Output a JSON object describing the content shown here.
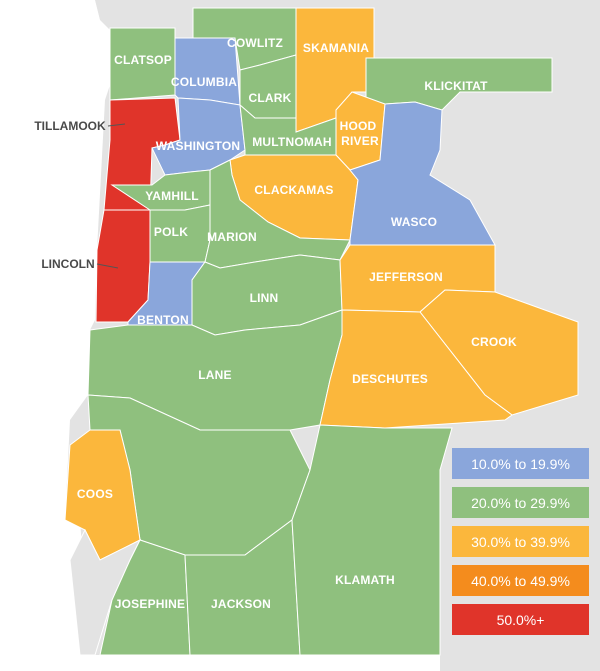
{
  "colors": {
    "band_10_19": "#8aa6db",
    "band_20_29": "#8fc07e",
    "band_30_39": "#fbb73c",
    "band_40_49": "#f48c1d",
    "band_50_plus": "#e0342a",
    "outside": "#e3e3e3"
  },
  "counties": {
    "clatsop": "CLATSOP",
    "columbia": "COLUMBIA",
    "cowlitz": "COWLITZ",
    "clark": "CLARK",
    "skamania": "SKAMANIA",
    "klickitat": "KLICKITAT",
    "tillamook": "TILLAMOOK",
    "washington": "WASHINGTON",
    "multnomah": "MULTNOMAH",
    "hood_river_line1": "HOOD",
    "hood_river_line2": "RIVER",
    "clackamas": "CLACKAMAS",
    "wasco": "WASCO",
    "yamhill": "YAMHILL",
    "polk": "POLK",
    "marion": "MARION",
    "lincoln": "LINCOLN",
    "jefferson": "JEFFERSON",
    "linn": "LINN",
    "benton": "BENTON",
    "crook": "CROOK",
    "lane": "LANE",
    "deschutes": "DESCHUTES",
    "coos": "COOS",
    "klamath": "KLAMATH",
    "josephine": "JOSEPHINE",
    "jackson": "JACKSON"
  },
  "county_band": {
    "clatsop": "20.0% to 29.9%",
    "columbia": "10.0% to 19.9%",
    "cowlitz": "20.0% to 29.9%",
    "clark": "20.0% to 29.9%",
    "skamania": "30.0% to 39.9%",
    "klickitat": "20.0% to 29.9%",
    "tillamook": "50.0%+",
    "washington": "10.0% to 19.9%",
    "multnomah": "20.0% to 29.9%",
    "hood_river": "30.0% to 39.9%",
    "clackamas": "30.0% to 39.9%",
    "wasco": "10.0% to 19.9%",
    "yamhill": "20.0% to 29.9%",
    "polk": "20.0% to 29.9%",
    "marion": "20.0% to 29.9%",
    "lincoln": "50.0%+",
    "jefferson": "30.0% to 39.9%",
    "linn": "20.0% to 29.9%",
    "benton": "10.0% to 19.9%",
    "crook": "30.0% to 39.9%",
    "lane": "20.0% to 29.9%",
    "deschutes": "30.0% to 39.9%",
    "coos": "30.0% to 39.9%",
    "klamath": "20.0% to 29.9%",
    "josephine": "20.0% to 29.9%",
    "jackson": "20.0% to 29.9%"
  },
  "legend": [
    {
      "label": "10.0% to 19.9%",
      "color": "#8aa6db"
    },
    {
      "label": "20.0% to 29.9%",
      "color": "#8fc07e"
    },
    {
      "label": "30.0% to 39.9%",
      "color": "#fbb73c"
    },
    {
      "label": "40.0% to 49.9%",
      "color": "#f48c1d"
    },
    {
      "label": "50.0%+",
      "color": "#e0342a"
    }
  ]
}
